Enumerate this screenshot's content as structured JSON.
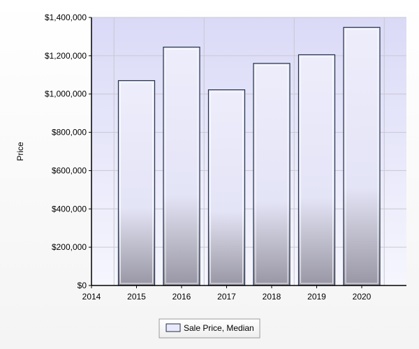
{
  "chart_data": {
    "type": "bar",
    "categories": [
      "2015",
      "2016",
      "2017",
      "2018",
      "2019",
      "2020"
    ],
    "series": [
      {
        "name": "Sale Price, Median",
        "values": [
          1070000,
          1245000,
          1022000,
          1160000,
          1205000,
          1348000
        ]
      }
    ],
    "xlabel": "",
    "ylabel": "Price",
    "ylim": [
      0,
      1400000
    ],
    "yticks": [
      "$0",
      "$200,000",
      "$400,000",
      "$600,000",
      "$800,000",
      "$1,000,000",
      "$1,200,000",
      "$1,400,000"
    ],
    "xticks": [
      "2014",
      "2015",
      "2016",
      "2017",
      "2018",
      "2019",
      "2020"
    ],
    "grid": true,
    "legend": "bottom-center",
    "colors": {
      "plot_top": "#dcdcf8",
      "plot_bottom": "#f4f4fd",
      "bar_fill": "#e9e9fb",
      "bar_shade": "#9c9aa8",
      "bar_border": "#1f2d44",
      "grid": "#c8c8d0"
    }
  }
}
